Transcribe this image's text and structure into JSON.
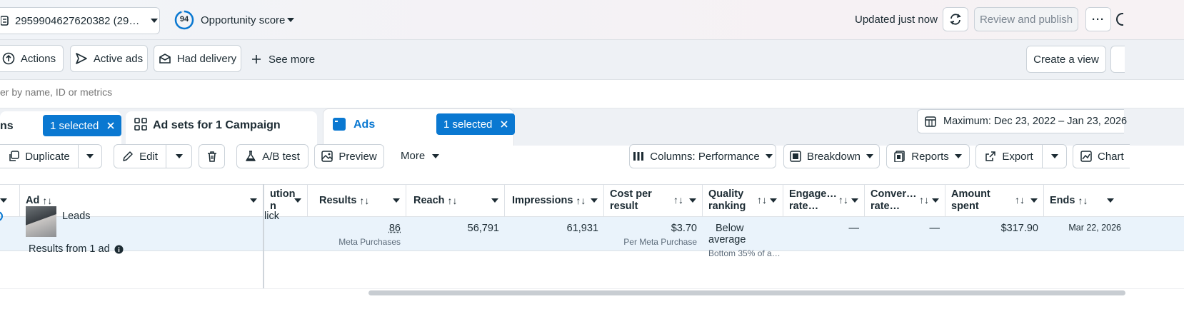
{
  "header": {
    "account_label": "2959904627620382 (29…",
    "score_value": "94",
    "score_label": "Opportunity score",
    "updated": "Updated just now",
    "review_publish": "Review and publish",
    "more": "···"
  },
  "filters": {
    "actions": "Actions",
    "active_ads": "Active ads",
    "had_delivery": "Had delivery",
    "see_more": "See more",
    "create_view": "Create a view"
  },
  "search": {
    "placeholder": "er by name, ID or metrics"
  },
  "tabs": {
    "campaigns_partial": "ns",
    "campaigns_selected": "1 selected",
    "adsets_label": "Ad sets for 1 Campaign",
    "ads_label": "Ads",
    "ads_selected": "1 selected",
    "date_range": "Maximum: Dec 23, 2022 – Jan 23, 2026"
  },
  "toolbar": {
    "duplicate": "Duplicate",
    "edit": "Edit",
    "ab_test": "A/B test",
    "preview": "Preview",
    "more": "More",
    "columns": "Columns: Performance",
    "breakdown": "Breakdown",
    "reports": "Reports",
    "export": "Export",
    "charts": "Chart"
  },
  "table": {
    "headers": {
      "ad": "Ad",
      "attribution_1": "ution",
      "attribution_2": "n",
      "results": "Results",
      "reach": "Reach",
      "impressions": "Impressions",
      "cpr_1": "Cost per",
      "cpr_2": "result",
      "quality_1": "Quality",
      "quality_2": "ranking",
      "engage_1": "Engage…",
      "engage_2": "rate…",
      "conver_1": "Conver…",
      "conver_2": "rate…",
      "amount_1": "Amount",
      "amount_2": "spent",
      "ends": "Ends"
    },
    "row": {
      "ad_name": "Leads",
      "attribution": "lick",
      "results": "86",
      "results_sub": "Meta Purchases",
      "reach": "56,791",
      "impressions": "61,931",
      "cpr": "$3.70",
      "cpr_sub": "Per Meta Purchase",
      "quality": "Below average",
      "quality_sub": "Bottom 35% of a…",
      "engage": "—",
      "conver": "—",
      "amount": "$317.90",
      "ends": "Mar 22, 2026"
    },
    "summary": "Results from 1 ad"
  }
}
